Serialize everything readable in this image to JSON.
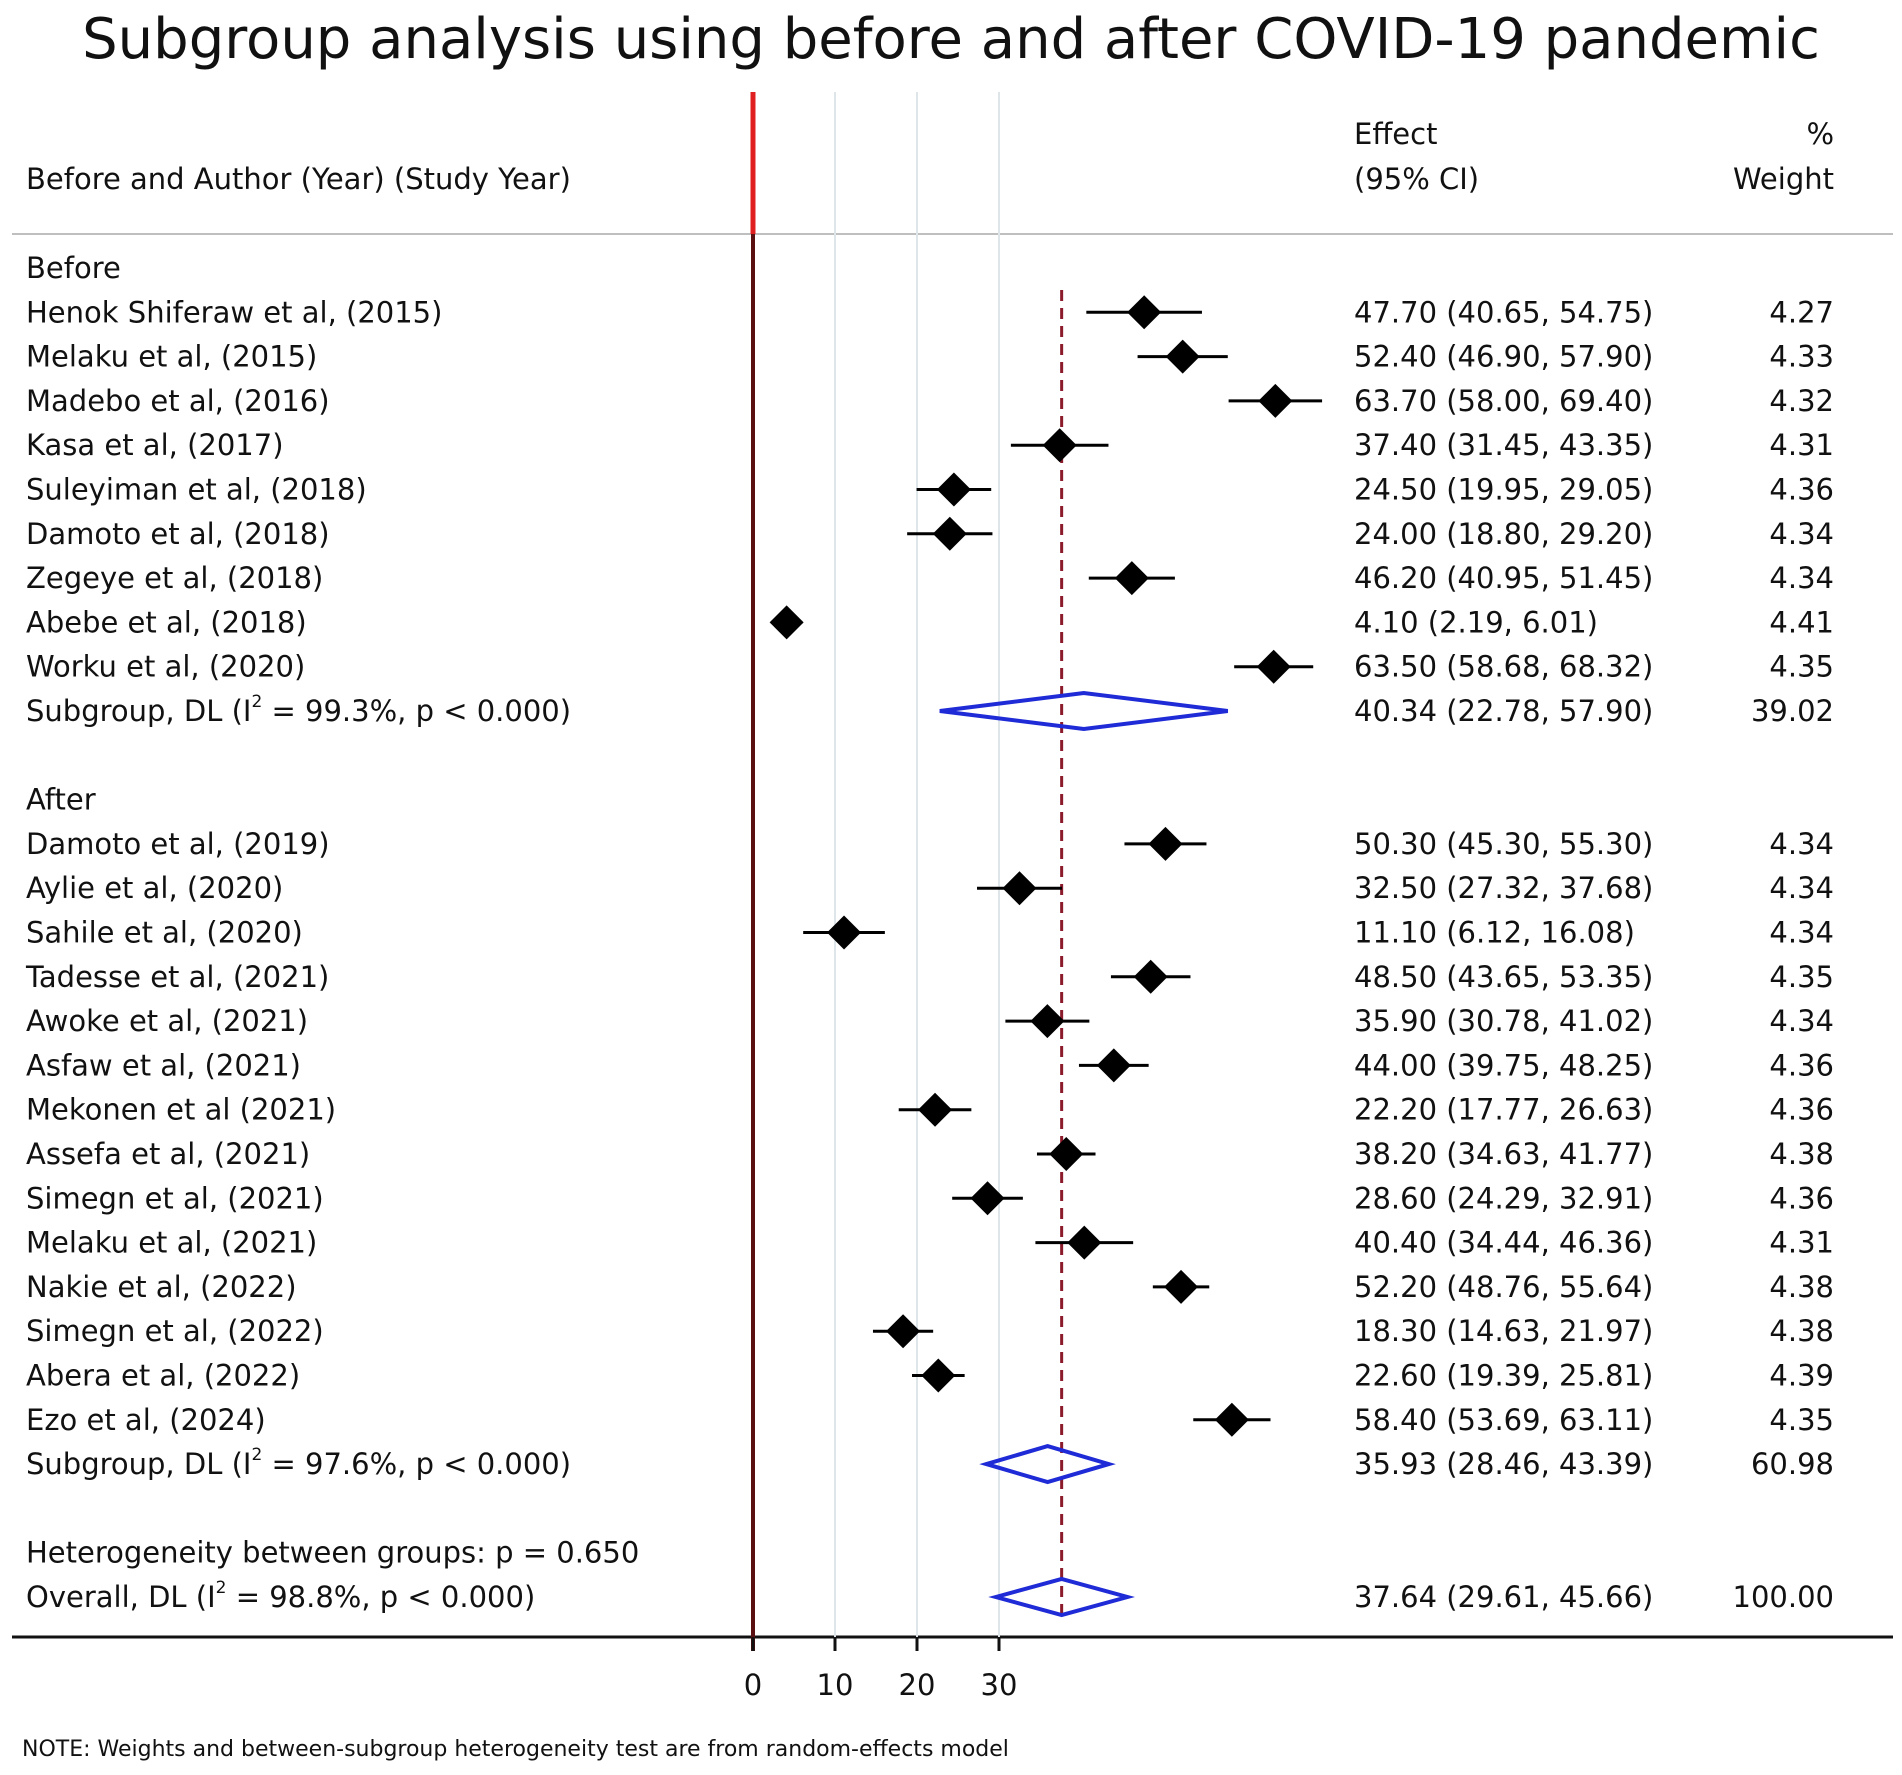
{
  "chart_data": {
    "type": "forest",
    "title": "Subgroup analysis using before and after COVID-19 pandemic",
    "header": {
      "study_label": "Before and Author (Year) (Study Year)",
      "effect_label_1": "Effect",
      "effect_label_2": "(95% CI)",
      "weight_label_1": "%",
      "weight_label_2": "Weight"
    },
    "xaxis": {
      "ticks": [
        "0",
        "10",
        "20",
        "30"
      ],
      "tick_values": [
        0,
        10,
        20,
        30
      ],
      "range": [
        0,
        70
      ],
      "gridlines": [
        10,
        20,
        30
      ],
      "null_line": 0
    },
    "overall_line": 37.64,
    "groups": [
      {
        "label": "Before",
        "studies": [
          {
            "name": "Henok Shiferaw et al, (2015)",
            "effect": 47.7,
            "lo": 40.65,
            "hi": 54.75,
            "ci_text": "47.70 (40.65, 54.75)",
            "weight": "4.27"
          },
          {
            "name": "Melaku et al, (2015)",
            "effect": 52.4,
            "lo": 46.9,
            "hi": 57.9,
            "ci_text": "52.40 (46.90, 57.90)",
            "weight": "4.33"
          },
          {
            "name": "Madebo et al, (2016)",
            "effect": 63.7,
            "lo": 58.0,
            "hi": 69.4,
            "ci_text": "63.70 (58.00, 69.40)",
            "weight": "4.32"
          },
          {
            "name": "Kasa et al, (2017)",
            "effect": 37.4,
            "lo": 31.45,
            "hi": 43.35,
            "ci_text": "37.40 (31.45, 43.35)",
            "weight": "4.31"
          },
          {
            "name": "Suleyiman et al, (2018)",
            "effect": 24.5,
            "lo": 19.95,
            "hi": 29.05,
            "ci_text": "24.50 (19.95, 29.05)",
            "weight": "4.36"
          },
          {
            "name": "Damoto et al, (2018)",
            "effect": 24.0,
            "lo": 18.8,
            "hi": 29.2,
            "ci_text": "24.00 (18.80, 29.20)",
            "weight": "4.34"
          },
          {
            "name": "Zegeye et al, (2018)",
            "effect": 46.2,
            "lo": 40.95,
            "hi": 51.45,
            "ci_text": "46.20 (40.95, 51.45)",
            "weight": "4.34"
          },
          {
            "name": "Abebe et al,  (2018)",
            "effect": 4.1,
            "lo": 2.19,
            "hi": 6.01,
            "ci_text": "4.10 (2.19, 6.01)",
            "weight": "4.41"
          },
          {
            "name": "Worku et al, (2020)",
            "effect": 63.5,
            "lo": 58.68,
            "hi": 68.32,
            "ci_text": "63.50 (58.68, 68.32)",
            "weight": "4.35"
          }
        ],
        "subgroup": {
          "name_pre": "Subgroup, DL (I",
          "sup": "2",
          "name_post": " = 99.3%, p < 0.000)",
          "effect": 40.34,
          "lo": 22.78,
          "hi": 57.9,
          "ci_text": "40.34 (22.78, 57.90)",
          "weight": "39.02"
        }
      },
      {
        "label": "After",
        "studies": [
          {
            "name": "Damoto et al, (2019)",
            "effect": 50.3,
            "lo": 45.3,
            "hi": 55.3,
            "ci_text": "50.30 (45.30, 55.30)",
            "weight": "4.34"
          },
          {
            "name": "Aylie et al, (2020)",
            "effect": 32.5,
            "lo": 27.32,
            "hi": 37.68,
            "ci_text": "32.50 (27.32, 37.68)",
            "weight": "4.34"
          },
          {
            "name": "Sahile et al, (2020)",
            "effect": 11.1,
            "lo": 6.12,
            "hi": 16.08,
            "ci_text": "11.10 (6.12, 16.08)",
            "weight": "4.34"
          },
          {
            "name": "Tadesse et al, (2021)",
            "effect": 48.5,
            "lo": 43.65,
            "hi": 53.35,
            "ci_text": "48.50 (43.65, 53.35)",
            "weight": "4.35"
          },
          {
            "name": "Awoke et al, (2021)",
            "effect": 35.9,
            "lo": 30.78,
            "hi": 41.02,
            "ci_text": "35.90 (30.78, 41.02)",
            "weight": "4.34"
          },
          {
            "name": "Asfaw et al, (2021)",
            "effect": 44.0,
            "lo": 39.75,
            "hi": 48.25,
            "ci_text": "44.00 (39.75, 48.25)",
            "weight": "4.36"
          },
          {
            "name": "Mekonen et al (2021)",
            "effect": 22.2,
            "lo": 17.77,
            "hi": 26.63,
            "ci_text": "22.20 (17.77, 26.63)",
            "weight": "4.36"
          },
          {
            "name": "Assefa et al, (2021)",
            "effect": 38.2,
            "lo": 34.63,
            "hi": 41.77,
            "ci_text": "38.20 (34.63, 41.77)",
            "weight": "4.38"
          },
          {
            "name": "Simegn et al, (2021)",
            "effect": 28.6,
            "lo": 24.29,
            "hi": 32.91,
            "ci_text": "28.60 (24.29, 32.91)",
            "weight": "4.36"
          },
          {
            "name": "Melaku et al, (2021)",
            "effect": 40.4,
            "lo": 34.44,
            "hi": 46.36,
            "ci_text": "40.40 (34.44, 46.36)",
            "weight": "4.31"
          },
          {
            "name": "Nakie et al, (2022)",
            "effect": 52.2,
            "lo": 48.76,
            "hi": 55.64,
            "ci_text": "52.20 (48.76, 55.64)",
            "weight": "4.38"
          },
          {
            "name": "Simegn et al, (2022)",
            "effect": 18.3,
            "lo": 14.63,
            "hi": 21.97,
            "ci_text": "18.30 (14.63, 21.97)",
            "weight": "4.38"
          },
          {
            "name": "Abera et al, (2022)",
            "effect": 22.6,
            "lo": 19.39,
            "hi": 25.81,
            "ci_text": "22.60 (19.39, 25.81)",
            "weight": "4.39"
          },
          {
            "name": "Ezo et al, (2024)",
            "effect": 58.4,
            "lo": 53.69,
            "hi": 63.11,
            "ci_text": "58.40 (53.69, 63.11)",
            "weight": "4.35"
          }
        ],
        "subgroup": {
          "name_pre": "Subgroup, DL (I",
          "sup": "2",
          "name_post": " = 97.6%, p < 0.000)",
          "effect": 35.93,
          "lo": 28.46,
          "hi": 43.39,
          "ci_text": "35.93 (28.46, 43.39)",
          "weight": "60.98"
        }
      }
    ],
    "heterogeneity": "Heterogeneity between groups: p = 0.650",
    "overall": {
      "name_pre": "Overall, DL (I",
      "sup": "2",
      "name_post": " = 98.8%, p < 0.000)",
      "effect": 37.64,
      "lo": 29.61,
      "hi": 45.66,
      "ci_text": "37.64 (29.61, 45.66)",
      "weight": "100.00"
    },
    "note": "NOTE: Weights and between-subgroup heterogeneity test are from random-effects model",
    "colors": {
      "null_line": "#e02020",
      "null_line_lower": "#5a1010",
      "overall_line": "#8b1a2b",
      "diamond": "#1f2bd6",
      "gridline": "#dfe6ea",
      "marker": "#000000"
    }
  }
}
